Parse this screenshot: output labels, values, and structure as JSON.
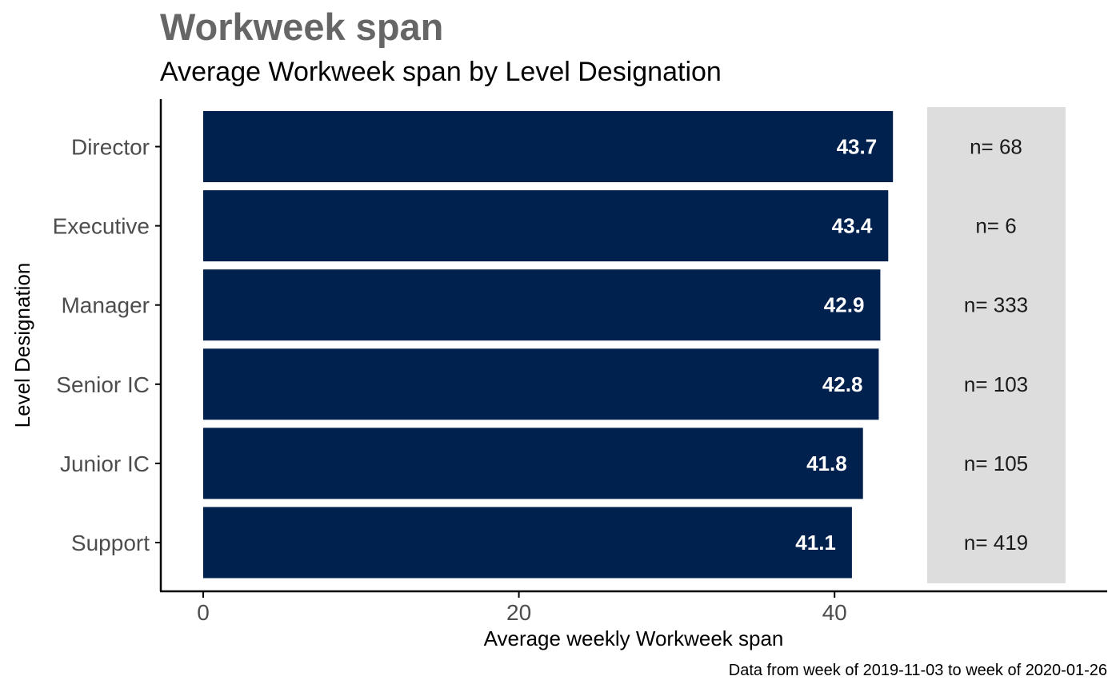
{
  "chart_data": {
    "type": "bar",
    "orientation": "horizontal",
    "title": "Workweek span",
    "subtitle": "Average Workweek span by Level Designation",
    "xlabel": "Average weekly Workweek span",
    "ylabel": "Level Designation",
    "caption": "Data from week of 2019-11-03 to week of 2020-01-26",
    "categories": [
      "Director",
      "Executive",
      "Manager",
      "Senior IC",
      "Junior IC",
      "Support"
    ],
    "values": [
      43.7,
      43.4,
      42.9,
      42.8,
      41.8,
      41.1
    ],
    "value_labels": [
      "43.7",
      "43.4",
      "42.9",
      "42.8",
      "41.8",
      "41.1"
    ],
    "counts": [
      "n= 68",
      "n= 6",
      "n= 333",
      "n= 103",
      "n= 105",
      "n= 419"
    ],
    "xticks": [
      0,
      20,
      40
    ],
    "xtick_labels": [
      "0",
      "20",
      "40"
    ],
    "xlim": [
      0,
      55
    ],
    "grid": false,
    "legend": "none",
    "colors": {
      "bar": "#00204e",
      "count_panel": "#dddddd",
      "axis": "#000000"
    }
  }
}
